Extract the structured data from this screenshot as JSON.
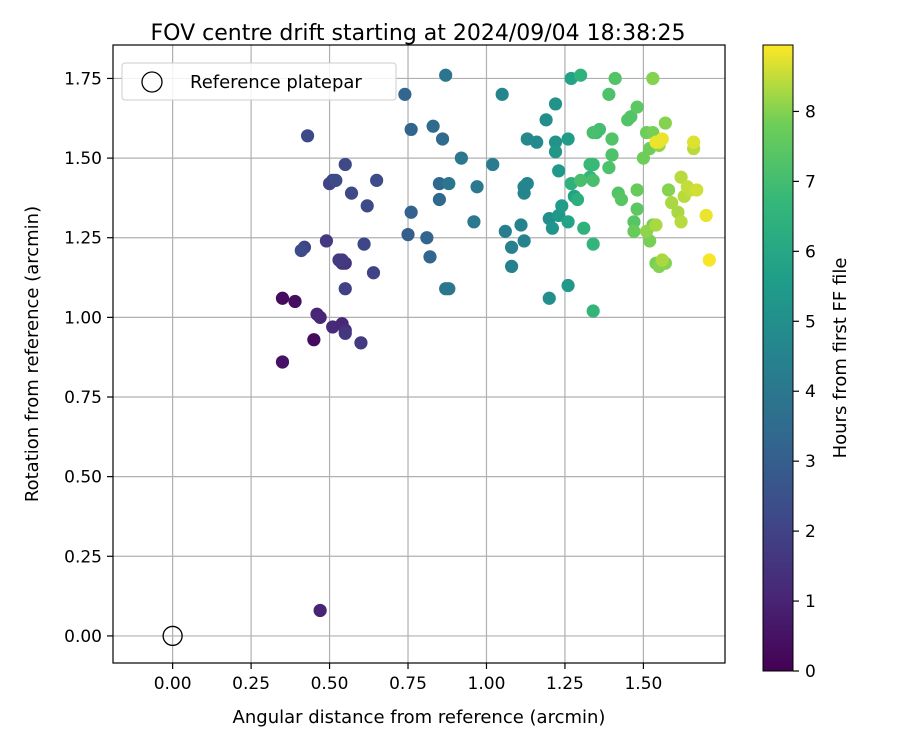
{
  "chart_data": {
    "type": "scatter",
    "title": "FOV centre drift starting at 2024/09/04 18:38:25",
    "xlabel": "Angular distance from reference (arcmin)",
    "ylabel": "Rotation from reference (arcmin)",
    "xlim": [
      -0.19,
      1.76
    ],
    "ylim": [
      -0.085,
      1.855
    ],
    "xticks": [
      "0.00",
      "0.25",
      "0.50",
      "0.75",
      "1.00",
      "1.25",
      "1.50"
    ],
    "yticks": [
      "0.00",
      "0.25",
      "0.50",
      "0.75",
      "1.00",
      "1.25",
      "1.50",
      "1.75"
    ],
    "grid": true,
    "legend": {
      "placement": "upper-left",
      "entries": [
        "Reference platepar"
      ]
    },
    "reference_point": {
      "x": 0.0,
      "y": 0.0,
      "label": "Reference platepar"
    },
    "colorbar": {
      "label": "Hours from first FF file",
      "range": [
        0,
        8.95
      ],
      "ticks": [
        "0",
        "1",
        "2",
        "3",
        "4",
        "5",
        "6",
        "7",
        "8"
      ],
      "colormap": "viridis"
    },
    "series": [
      {
        "color_by": "Hours from first FF file",
        "x": [
          0.47,
          0.45,
          0.35,
          0.35,
          0.39,
          0.46,
          0.47,
          0.51,
          0.54,
          0.55,
          0.55,
          0.6,
          0.54,
          0.55,
          0.54,
          0.53,
          0.49,
          0.42,
          0.55,
          0.64,
          0.61,
          0.55,
          0.5,
          0.51,
          0.57,
          0.62,
          0.65,
          0.52,
          0.43,
          0.41,
          0.75,
          0.76,
          0.76,
          0.74,
          0.81,
          0.82,
          0.85,
          0.85,
          0.83,
          0.86,
          0.88,
          0.87,
          0.87,
          0.88,
          0.92,
          0.97,
          0.96,
          1.02,
          1.06,
          1.08,
          1.08,
          1.12,
          1.11,
          1.12,
          1.12,
          1.13,
          1.12,
          1.05,
          1.13,
          1.16,
          1.19,
          1.2,
          1.2,
          1.22,
          1.22,
          1.21,
          1.23,
          1.22,
          1.23,
          1.24,
          1.26,
          1.26,
          1.27,
          1.26,
          1.28,
          1.29,
          1.27,
          1.3,
          1.31,
          1.33,
          1.34,
          1.34,
          1.35,
          1.34,
          1.33,
          1.36,
          1.3,
          1.34,
          1.34,
          1.39,
          1.4,
          1.39,
          1.4,
          1.42,
          1.41,
          1.43,
          1.45,
          1.46,
          1.47,
          1.48,
          1.48,
          1.47,
          1.48,
          1.5,
          1.51,
          1.52,
          1.53,
          1.52,
          1.53,
          1.54,
          1.55,
          1.57,
          1.58,
          1.57,
          1.53,
          1.51,
          1.55,
          1.54,
          1.56,
          1.59,
          1.61,
          1.62,
          1.62,
          1.63,
          1.64,
          1.66,
          1.65,
          1.67,
          1.66,
          1.71,
          1.7,
          1.55,
          1.56,
          1.54
        ],
        "y": [
          0.08,
          0.93,
          0.86,
          1.06,
          1.05,
          1.01,
          1.0,
          0.97,
          0.98,
          0.96,
          0.95,
          0.92,
          1.17,
          1.17,
          1.18,
          1.18,
          1.24,
          1.22,
          1.09,
          1.14,
          1.23,
          1.48,
          1.42,
          1.43,
          1.39,
          1.35,
          1.43,
          1.43,
          1.57,
          1.21,
          1.26,
          1.33,
          1.59,
          1.7,
          1.25,
          1.19,
          1.42,
          1.37,
          1.6,
          1.56,
          1.42,
          1.09,
          1.76,
          1.09,
          1.5,
          1.41,
          1.3,
          1.48,
          1.27,
          1.16,
          1.22,
          1.24,
          1.29,
          1.39,
          1.41,
          1.42,
          1.41,
          1.7,
          1.56,
          1.55,
          1.62,
          1.31,
          1.06,
          1.55,
          1.67,
          1.28,
          1.32,
          1.52,
          1.46,
          1.35,
          1.56,
          1.1,
          1.75,
          1.3,
          1.38,
          1.37,
          1.42,
          1.76,
          1.28,
          1.44,
          1.02,
          1.23,
          1.58,
          1.48,
          1.48,
          1.59,
          1.43,
          1.43,
          1.58,
          1.47,
          1.51,
          1.7,
          1.56,
          1.39,
          1.75,
          1.37,
          1.62,
          1.63,
          1.3,
          1.34,
          1.66,
          1.27,
          1.4,
          1.5,
          1.58,
          1.53,
          1.58,
          1.24,
          1.29,
          1.17,
          1.16,
          1.17,
          1.4,
          1.61,
          1.75,
          1.27,
          1.54,
          1.29,
          1.18,
          1.36,
          1.33,
          1.44,
          1.3,
          1.38,
          1.41,
          1.53,
          1.4,
          1.4,
          1.55,
          1.18,
          1.32,
          1.55,
          1.56,
          1.55
        ],
        "hours": [
          1.0,
          0.3,
          0.5,
          0.3,
          0.4,
          1.0,
          1.1,
          1.2,
          1.1,
          1.3,
          1.6,
          1.7,
          1.6,
          1.5,
          1.7,
          1.7,
          1.7,
          2.0,
          1.9,
          2.0,
          2.1,
          2.2,
          2.0,
          2.0,
          2.2,
          2.2,
          2.3,
          2.3,
          2.2,
          2.3,
          3.0,
          3.1,
          3.2,
          3.3,
          3.3,
          3.3,
          3.4,
          3.4,
          3.5,
          3.5,
          3.9,
          3.9,
          3.9,
          4.0,
          4.0,
          4.1,
          4.1,
          4.2,
          4.3,
          4.4,
          4.4,
          4.5,
          4.5,
          4.6,
          4.6,
          4.6,
          4.6,
          4.6,
          4.7,
          4.8,
          4.9,
          5.0,
          5.0,
          5.1,
          5.1,
          5.2,
          5.3,
          5.3,
          5.4,
          5.5,
          5.5,
          5.4,
          5.8,
          5.8,
          5.8,
          6.3,
          6.4,
          6.5,
          6.5,
          6.6,
          6.6,
          6.6,
          6.7,
          6.8,
          6.8,
          7.0,
          7.1,
          7.1,
          7.1,
          7.2,
          7.2,
          7.2,
          7.3,
          7.3,
          7.3,
          7.4,
          7.3,
          7.3,
          7.4,
          7.5,
          7.5,
          7.7,
          7.7,
          7.8,
          7.8,
          7.8,
          7.9,
          7.9,
          7.9,
          7.9,
          8.0,
          8.0,
          8.0,
          8.0,
          8.0,
          8.1,
          8.1,
          8.3,
          8.3,
          8.3,
          8.3,
          8.4,
          8.4,
          8.4,
          8.5,
          8.4,
          8.5,
          8.6,
          8.7,
          8.9,
          8.8,
          8.7,
          8.8,
          8.8
        ]
      }
    ]
  }
}
